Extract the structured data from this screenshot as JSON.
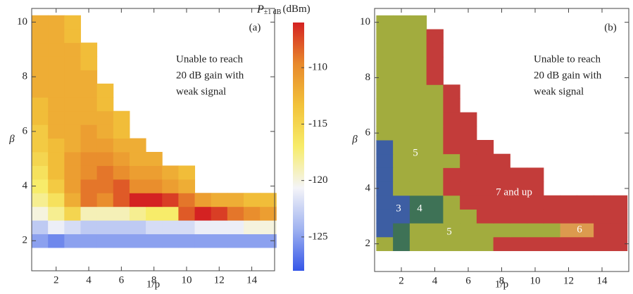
{
  "chart_data": [
    {
      "type": "heatmap",
      "panel_label": "(a)",
      "note": [
        "Unable to reach",
        "20 dB gain with",
        "weak signal"
      ],
      "xlabel": "1/p",
      "ylabel": "β",
      "xlim": [
        0.5,
        15.4
      ],
      "ylim": [
        0.9,
        10.5
      ],
      "xticks": [
        2,
        4,
        6,
        8,
        10,
        12,
        14
      ],
      "yticks": [
        2,
        4,
        6,
        8,
        10
      ],
      "x": [
        1,
        2,
        3,
        4,
        5,
        6,
        7,
        8,
        9,
        10,
        11,
        12,
        13,
        14,
        15
      ],
      "y": [
        2,
        2.5,
        3,
        3.5,
        4,
        4.5,
        5,
        5.5,
        6,
        6.5,
        7,
        7.5,
        8,
        8.5,
        9,
        9.5,
        10
      ],
      "values": [
        [
          -125,
          -126,
          -125,
          -125,
          -125,
          -125,
          -125,
          -125,
          -125,
          -125,
          -125,
          -125,
          -125,
          -125,
          -125
        ],
        [
          -123,
          -121,
          -122,
          -123,
          -123,
          -123,
          -123,
          -122,
          -122,
          -122,
          -121,
          -121,
          -121,
          -120,
          -120
        ],
        [
          -120,
          -118,
          -115,
          -119,
          -119,
          -119,
          -118,
          -117,
          -117,
          -108,
          -106,
          -107,
          -109,
          -110,
          -111
        ],
        [
          -118,
          -116,
          -112,
          -109,
          -110,
          -108,
          -106,
          -106,
          -107,
          -109,
          -111,
          -112,
          -112,
          -113,
          -113
        ],
        [
          -117,
          -114,
          -111,
          -109,
          -109,
          -108,
          -110,
          -110,
          -111,
          -112,
          null,
          null,
          null,
          null,
          null
        ],
        [
          -116,
          -113,
          -111,
          -110,
          -109,
          -110,
          -111,
          -111,
          -112,
          -113,
          null,
          null,
          null,
          null,
          null
        ],
        [
          -115,
          -113,
          -111,
          -110,
          -110,
          -111,
          -112,
          -112,
          null,
          null,
          null,
          null,
          null,
          null,
          null
        ],
        [
          -114,
          -113,
          -112,
          -111,
          -111,
          -112,
          -112,
          null,
          null,
          null,
          null,
          null,
          null,
          null,
          null
        ],
        [
          -114,
          -112,
          -112,
          -111,
          -112,
          -113,
          null,
          null,
          null,
          null,
          null,
          null,
          null,
          null,
          null
        ],
        [
          -113,
          -112,
          -112,
          -112,
          -112,
          -113,
          null,
          null,
          null,
          null,
          null,
          null,
          null,
          null,
          null
        ],
        [
          -113,
          -112,
          -112,
          -112,
          -113,
          null,
          null,
          null,
          null,
          null,
          null,
          null,
          null,
          null,
          null
        ],
        [
          -112,
          -112,
          -112,
          -112,
          -113,
          null,
          null,
          null,
          null,
          null,
          null,
          null,
          null,
          null,
          null
        ],
        [
          -112,
          -112,
          -112,
          -112,
          null,
          null,
          null,
          null,
          null,
          null,
          null,
          null,
          null,
          null,
          null
        ],
        [
          -112,
          -112,
          -112,
          -113,
          null,
          null,
          null,
          null,
          null,
          null,
          null,
          null,
          null,
          null,
          null
        ],
        [
          -112,
          -112,
          -112,
          -113,
          null,
          null,
          null,
          null,
          null,
          null,
          null,
          null,
          null,
          null,
          null
        ],
        [
          -112,
          -112,
          -113,
          null,
          null,
          null,
          null,
          null,
          null,
          null,
          null,
          null,
          null,
          null,
          null
        ],
        [
          -112,
          -112,
          -113,
          null,
          null,
          null,
          null,
          null,
          null,
          null,
          null,
          null,
          null,
          null,
          null
        ]
      ],
      "colorbar": {
        "symbol": "P",
        "subscript": "±1 dB",
        "unit": "(dBm)",
        "lim": [
          -128,
          -106
        ],
        "ticks": [
          -125,
          -120,
          -115,
          -110
        ],
        "colors": [
          "#3556e8",
          "#9fb2f0",
          "#f4f4f8",
          "#f7ec6a",
          "#f2c23a",
          "#e8892c",
          "#d42222"
        ]
      }
    },
    {
      "type": "heatmap",
      "panel_label": "(b)",
      "note": [
        "Unable to reach",
        "20 dB gain with",
        "weak signal"
      ],
      "xlabel": "1/p",
      "ylabel": "β",
      "xlim": [
        0.4,
        15.6
      ],
      "ylim": [
        1.0,
        10.5
      ],
      "xticks": [
        2,
        4,
        6,
        8,
        10,
        12,
        14
      ],
      "yticks": [
        2,
        4,
        6,
        8,
        10
      ],
      "x": [
        1,
        2,
        3,
        4,
        5,
        6,
        7,
        8,
        9,
        10,
        11,
        12,
        13,
        14,
        15
      ],
      "y": [
        2,
        2.5,
        3,
        3.5,
        4,
        4.5,
        5,
        5.5,
        6,
        6.5,
        7,
        7.5,
        8,
        8.5,
        9,
        9.5,
        10
      ],
      "values": [
        [
          5,
          4,
          5,
          5,
          5,
          5,
          5,
          7,
          7,
          7,
          7,
          7,
          7,
          7,
          7
        ],
        [
          3,
          4,
          5,
          5,
          5,
          5,
          5,
          5,
          5,
          5,
          5,
          6,
          6,
          7,
          7
        ],
        [
          3,
          3,
          4,
          4,
          5,
          5,
          7,
          7,
          7,
          7,
          7,
          7,
          7,
          7,
          7
        ],
        [
          3,
          3,
          4,
          4,
          5,
          7,
          7,
          7,
          7,
          7,
          7,
          7,
          7,
          7,
          7
        ],
        [
          3,
          5,
          5,
          5,
          7,
          7,
          7,
          7,
          7,
          7,
          null,
          null,
          null,
          null,
          null
        ],
        [
          3,
          5,
          5,
          5,
          7,
          7,
          7,
          7,
          7,
          7,
          null,
          null,
          null,
          null,
          null
        ],
        [
          3,
          5,
          5,
          5,
          5,
          7,
          7,
          7,
          null,
          null,
          null,
          null,
          null,
          null,
          null
        ],
        [
          3,
          5,
          5,
          5,
          7,
          7,
          7,
          null,
          null,
          null,
          null,
          null,
          null,
          null,
          null
        ],
        [
          5,
          5,
          5,
          5,
          7,
          7,
          null,
          null,
          null,
          null,
          null,
          null,
          null,
          null,
          null
        ],
        [
          5,
          5,
          5,
          5,
          7,
          7,
          null,
          null,
          null,
          null,
          null,
          null,
          null,
          null,
          null
        ],
        [
          5,
          5,
          5,
          5,
          7,
          null,
          null,
          null,
          null,
          null,
          null,
          null,
          null,
          null,
          null
        ],
        [
          5,
          5,
          5,
          5,
          7,
          null,
          null,
          null,
          null,
          null,
          null,
          null,
          null,
          null,
          null
        ],
        [
          5,
          5,
          5,
          7,
          null,
          null,
          null,
          null,
          null,
          null,
          null,
          null,
          null,
          null,
          null
        ],
        [
          5,
          5,
          5,
          7,
          null,
          null,
          null,
          null,
          null,
          null,
          null,
          null,
          null,
          null,
          null
        ],
        [
          5,
          5,
          5,
          7,
          null,
          null,
          null,
          null,
          null,
          null,
          null,
          null,
          null,
          null,
          null
        ],
        [
          5,
          5,
          5,
          7,
          null,
          null,
          null,
          null,
          null,
          null,
          null,
          null,
          null,
          null,
          null
        ],
        [
          5,
          5,
          5,
          null,
          null,
          null,
          null,
          null,
          null,
          null,
          null,
          null,
          null,
          null,
          null
        ]
      ],
      "category_colors": {
        "3": "#3d5ea3",
        "4": "#3e7256",
        "5": "#a2ac3e",
        "6": "#dc9a4e",
        "7": "#c33c3a"
      },
      "annotations": [
        "5",
        "3",
        "4",
        "5",
        "6",
        "7 and up"
      ]
    }
  ]
}
